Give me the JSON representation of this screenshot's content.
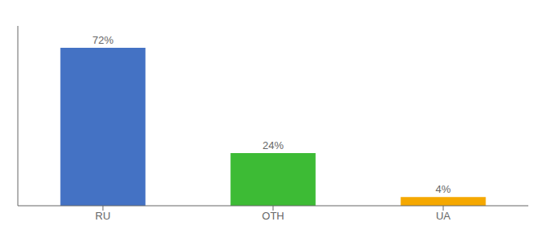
{
  "chart_data": {
    "type": "bar",
    "categories": [
      "RU",
      "OTH",
      "UA"
    ],
    "values": [
      72,
      24,
      4
    ],
    "value_labels": [
      "72%",
      "24%",
      "4%"
    ],
    "colors": [
      "#4472c4",
      "#3dbb35",
      "#f5a800"
    ],
    "ylim": [
      0,
      82
    ],
    "tick_labels": "x",
    "grid": false,
    "data_labels": true
  }
}
